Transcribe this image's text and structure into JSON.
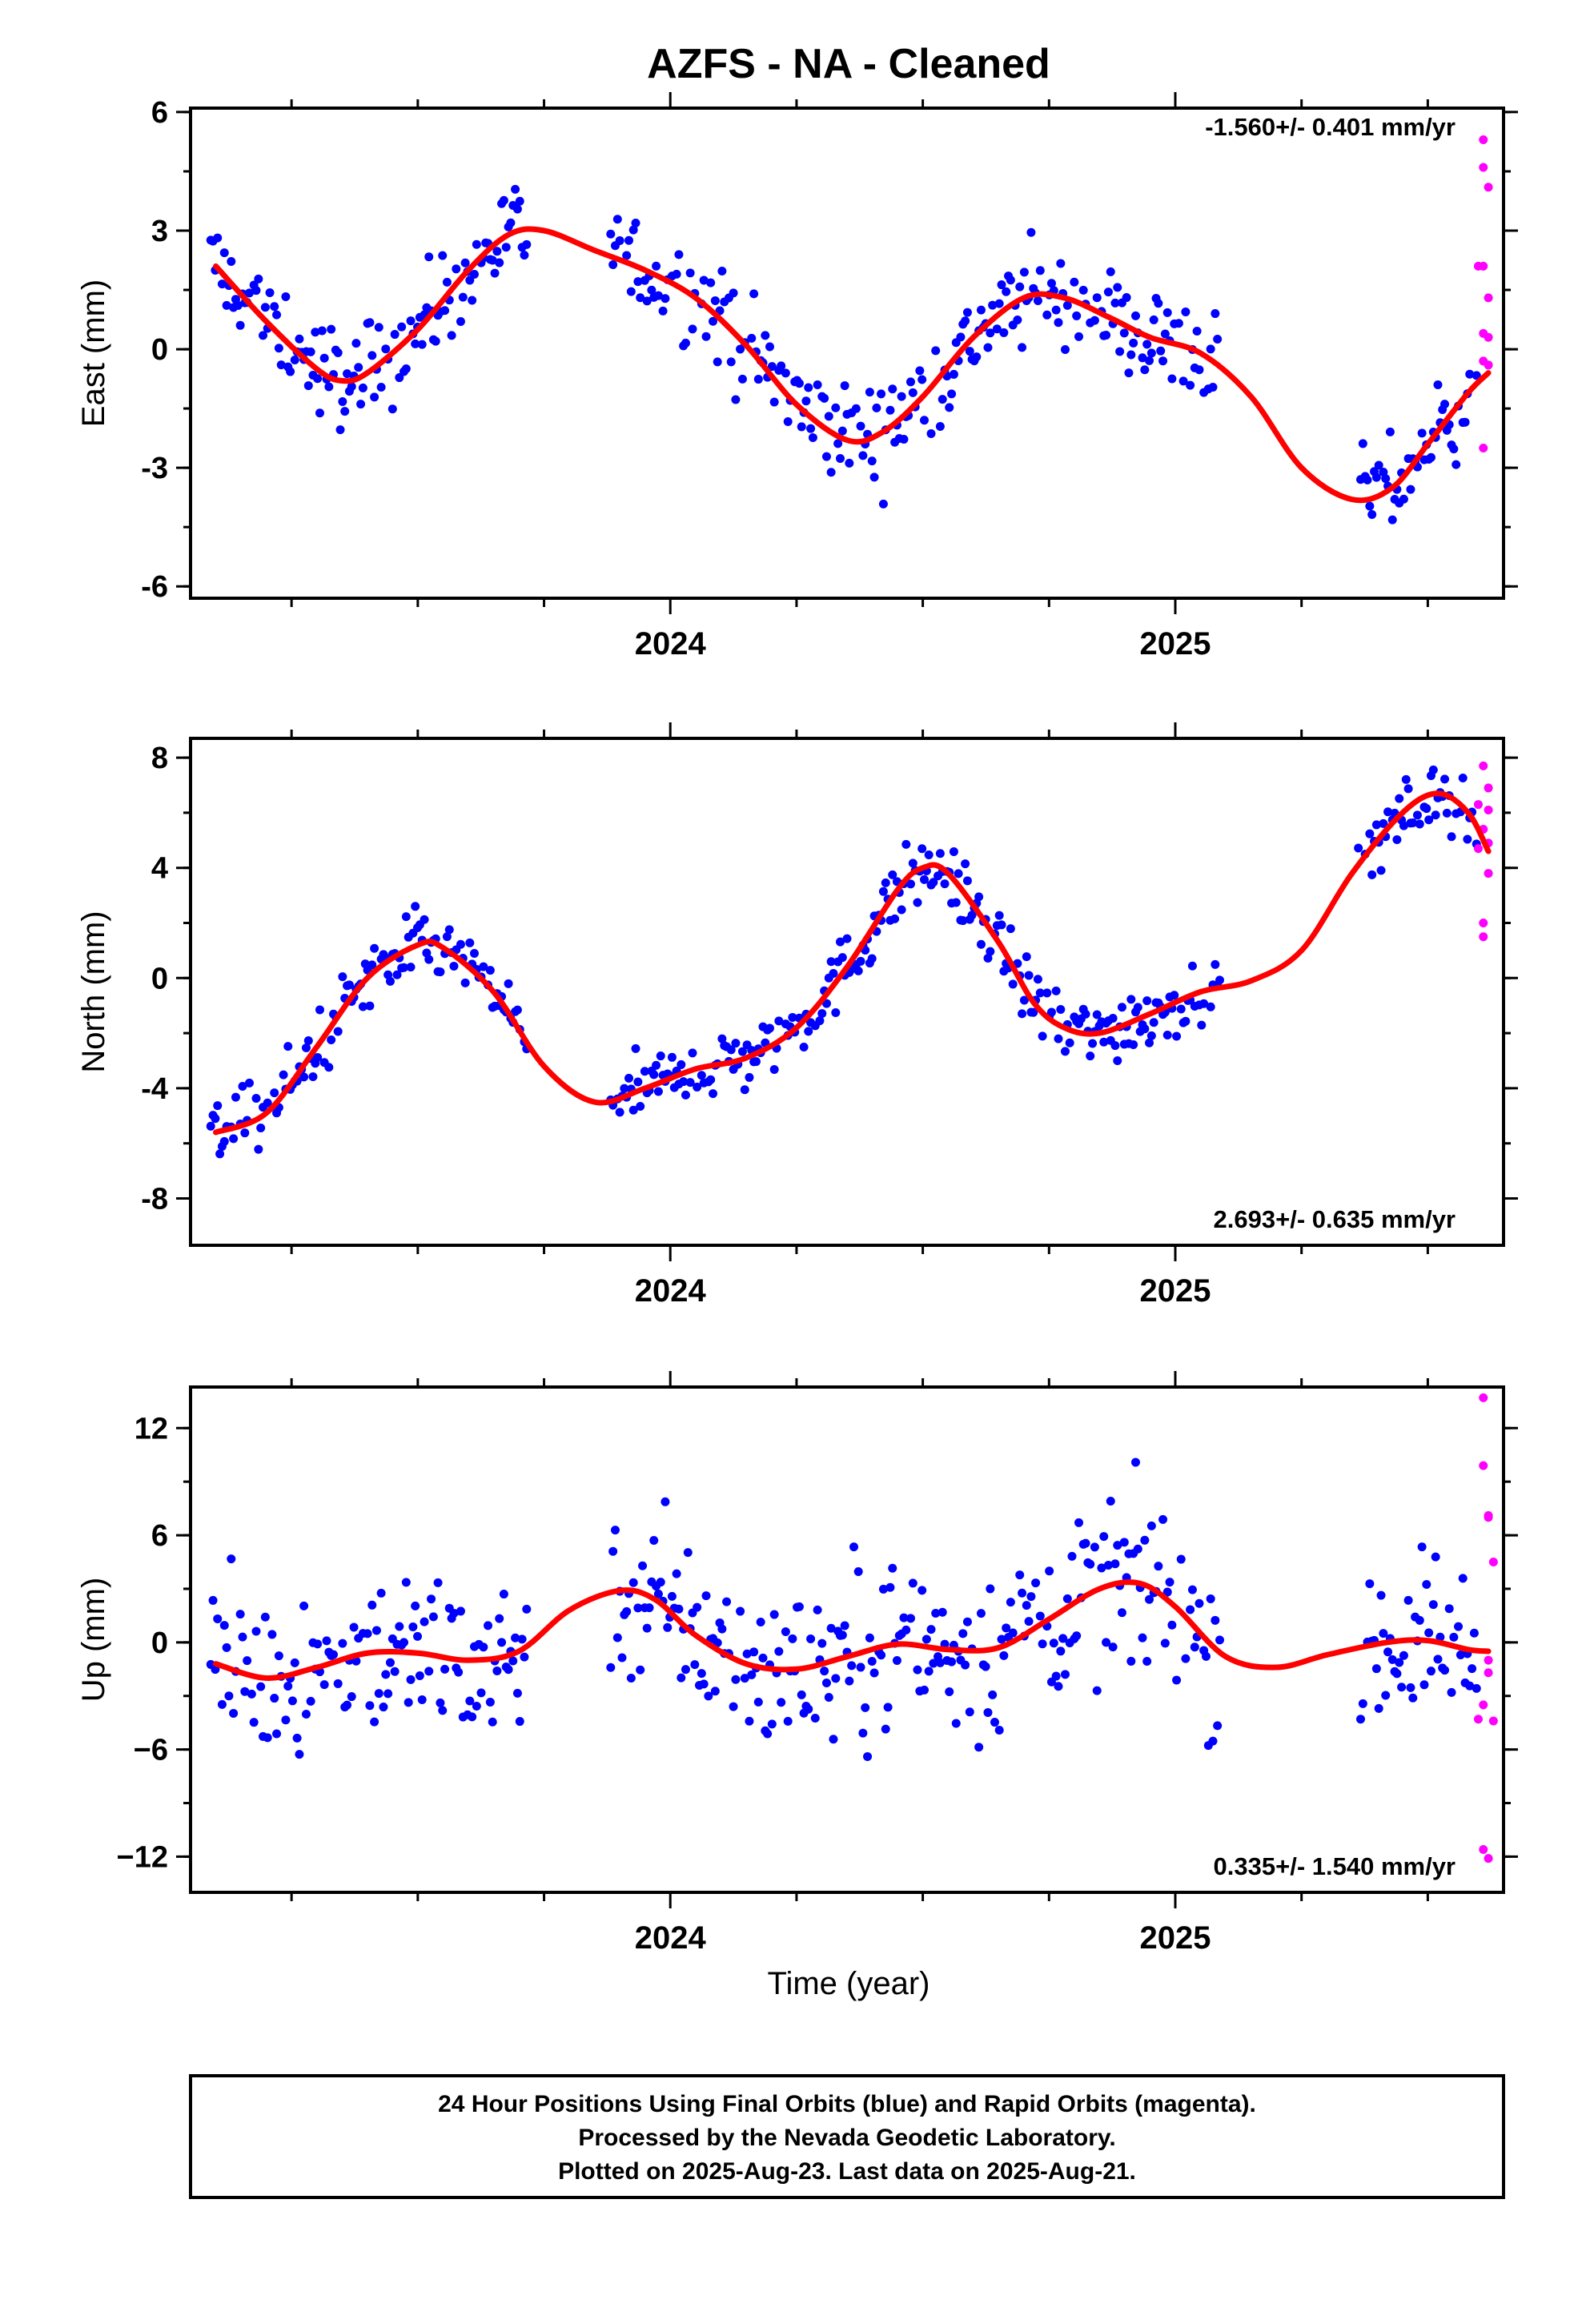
{
  "title": "AZFS  - NA - Cleaned",
  "x_axis_label": "Time (year)",
  "footer_lines": [
    "24 Hour Positions Using Final Orbits (blue) and Rapid Orbits (magenta).",
    "Processed by the Nevada Geodetic Laboratory.",
    "Plotted on 2025-Aug-23. Last data on 2025-Aug-21."
  ],
  "colors": {
    "final": "#0000ff",
    "rapid": "#ff00ff",
    "fit": "#ff0000"
  },
  "chart_data": [
    {
      "type": "scatter",
      "ylabel": "East (mm)",
      "rate_text": "-1.560+/- 0.401 mm/yr",
      "rate_position": "top-right",
      "xlim": [
        2023.05,
        2025.65
      ],
      "ylim": [
        -6.3,
        6.1
      ],
      "yticks": [
        6,
        3,
        0,
        -3,
        -6
      ],
      "yticklabels": [
        "6",
        "3",
        "0",
        "-3",
        "-6"
      ],
      "xticks": [
        2024,
        2025
      ],
      "xticklabels": [
        "2024",
        "2025"
      ],
      "final_range": [
        2023.09,
        2025.6
      ],
      "gaps": [
        [
          2023.72,
          2023.88
        ],
        [
          2025.09,
          2025.36
        ]
      ],
      "scatter_sd": 1.15,
      "rapid": [
        [
          2025.61,
          5.3
        ],
        [
          2025.61,
          4.6
        ],
        [
          2025.62,
          4.1
        ],
        [
          2025.61,
          2.1
        ],
        [
          2025.6,
          2.1
        ],
        [
          2025.61,
          0.4
        ],
        [
          2025.62,
          0.3
        ],
        [
          2025.62,
          1.3
        ],
        [
          2025.61,
          -0.3
        ],
        [
          2025.62,
          -0.4
        ],
        [
          2025.61,
          -2.5
        ]
      ],
      "fit": [
        [
          2023.1,
          2.1
        ],
        [
          2023.2,
          0.7
        ],
        [
          2023.3,
          -0.5
        ],
        [
          2023.35,
          -0.8
        ],
        [
          2023.4,
          -0.6
        ],
        [
          2023.5,
          0.5
        ],
        [
          2023.6,
          2.0
        ],
        [
          2023.68,
          2.9
        ],
        [
          2023.75,
          3.0
        ],
        [
          2023.85,
          2.5
        ],
        [
          2023.95,
          2.0
        ],
        [
          2024.05,
          1.3
        ],
        [
          2024.15,
          0.1
        ],
        [
          2024.25,
          -1.4
        ],
        [
          2024.35,
          -2.3
        ],
        [
          2024.42,
          -2.1
        ],
        [
          2024.5,
          -1.2
        ],
        [
          2024.6,
          0.3
        ],
        [
          2024.7,
          1.3
        ],
        [
          2024.78,
          1.3
        ],
        [
          2024.87,
          0.8
        ],
        [
          2024.95,
          0.3
        ],
        [
          2025.05,
          -0.1
        ],
        [
          2025.15,
          -1.2
        ],
        [
          2025.25,
          -3.0
        ],
        [
          2025.35,
          -3.8
        ],
        [
          2025.43,
          -3.5
        ],
        [
          2025.5,
          -2.4
        ],
        [
          2025.58,
          -1.1
        ],
        [
          2025.62,
          -0.6
        ]
      ]
    },
    {
      "type": "scatter",
      "ylabel": "North (mm)",
      "rate_text": "2.693+/- 0.635 mm/yr",
      "rate_position": "bottom-right",
      "xlim": [
        2023.05,
        2025.65
      ],
      "ylim": [
        -9.7,
        8.7
      ],
      "yticks": [
        8,
        4,
        0,
        -4,
        -8
      ],
      "yticklabels": [
        "8",
        "4",
        "0",
        "-4",
        "-8"
      ],
      "xticks": [
        2024,
        2025
      ],
      "xticklabels": [
        "2024",
        "2025"
      ],
      "final_range": [
        2023.09,
        2025.6
      ],
      "gaps": [
        [
          2023.72,
          2023.88
        ],
        [
          2025.09,
          2025.36
        ]
      ],
      "scatter_sd": 1.15,
      "rapid": [
        [
          2025.61,
          7.7
        ],
        [
          2025.62,
          6.9
        ],
        [
          2025.6,
          6.3
        ],
        [
          2025.62,
          6.1
        ],
        [
          2025.61,
          5.4
        ],
        [
          2025.62,
          4.9
        ],
        [
          2025.6,
          4.7
        ],
        [
          2025.62,
          3.8
        ],
        [
          2025.61,
          2.0
        ],
        [
          2025.61,
          1.5
        ]
      ],
      "fit": [
        [
          2023.1,
          -5.6
        ],
        [
          2023.2,
          -4.9
        ],
        [
          2023.3,
          -2.5
        ],
        [
          2023.4,
          0.0
        ],
        [
          2023.5,
          1.2
        ],
        [
          2023.55,
          1.1
        ],
        [
          2023.65,
          -0.5
        ],
        [
          2023.75,
          -3.2
        ],
        [
          2023.85,
          -4.5
        ],
        [
          2023.95,
          -4.0
        ],
        [
          2024.05,
          -3.3
        ],
        [
          2024.15,
          -2.9
        ],
        [
          2024.25,
          -1.8
        ],
        [
          2024.35,
          0.4
        ],
        [
          2024.45,
          3.2
        ],
        [
          2024.5,
          4.0
        ],
        [
          2024.55,
          3.8
        ],
        [
          2024.65,
          1.3
        ],
        [
          2024.72,
          -0.9
        ],
        [
          2024.78,
          -1.8
        ],
        [
          2024.85,
          -2.0
        ],
        [
          2024.95,
          -1.3
        ],
        [
          2025.05,
          -0.5
        ],
        [
          2025.15,
          -0.1
        ],
        [
          2025.25,
          1.0
        ],
        [
          2025.35,
          3.8
        ],
        [
          2025.45,
          6.0
        ],
        [
          2025.52,
          6.7
        ],
        [
          2025.58,
          6.0
        ],
        [
          2025.62,
          4.6
        ]
      ]
    },
    {
      "type": "scatter",
      "ylabel": "Up (mm)",
      "rate_text": "0.335+/- 1.540 mm/yr",
      "rate_position": "bottom-right",
      "xlim": [
        2023.05,
        2025.65
      ],
      "ylim": [
        -14.0,
        14.3
      ],
      "yticks": [
        12,
        6,
        0,
        -6,
        -12
      ],
      "yticklabels": [
        "12",
        "6",
        "0",
        "−12"
      ],
      "yticklabel_values": [
        12,
        6,
        0,
        -12
      ],
      "yticklabel_six": "−6",
      "xticks": [
        2024,
        2025
      ],
      "xticklabels": [
        "2024",
        "2025"
      ],
      "final_range": [
        2023.09,
        2025.6
      ],
      "gaps": [
        [
          2023.72,
          2023.88
        ],
        [
          2025.09,
          2025.36
        ]
      ],
      "scatter_sd": 4.3,
      "rapid": [
        [
          2025.61,
          13.7
        ],
        [
          2025.61,
          9.9
        ],
        [
          2025.62,
          7.1
        ],
        [
          2025.62,
          7.0
        ],
        [
          2025.63,
          4.5
        ],
        [
          2025.62,
          -1.0
        ],
        [
          2025.62,
          -1.7
        ],
        [
          2025.61,
          -3.5
        ],
        [
          2025.6,
          -4.3
        ],
        [
          2025.63,
          -4.4
        ],
        [
          2025.61,
          -11.6
        ],
        [
          2025.62,
          -12.1
        ]
      ],
      "fit": [
        [
          2023.1,
          -1.2
        ],
        [
          2023.2,
          -2.0
        ],
        [
          2023.3,
          -1.4
        ],
        [
          2023.4,
          -0.6
        ],
        [
          2023.5,
          -0.6
        ],
        [
          2023.6,
          -1.0
        ],
        [
          2023.7,
          -0.5
        ],
        [
          2023.8,
          1.8
        ],
        [
          2023.9,
          2.9
        ],
        [
          2023.97,
          2.4
        ],
        [
          2024.05,
          0.4
        ],
        [
          2024.15,
          -1.2
        ],
        [
          2024.25,
          -1.5
        ],
        [
          2024.35,
          -0.8
        ],
        [
          2024.45,
          -0.1
        ],
        [
          2024.55,
          -0.4
        ],
        [
          2024.65,
          -0.3
        ],
        [
          2024.75,
          1.3
        ],
        [
          2024.85,
          3.0
        ],
        [
          2024.93,
          3.3
        ],
        [
          2025.0,
          2.0
        ],
        [
          2025.1,
          -0.8
        ],
        [
          2025.2,
          -1.4
        ],
        [
          2025.3,
          -0.7
        ],
        [
          2025.42,
          0.0
        ],
        [
          2025.5,
          0.1
        ],
        [
          2025.58,
          -0.4
        ],
        [
          2025.62,
          -0.5
        ]
      ]
    }
  ]
}
